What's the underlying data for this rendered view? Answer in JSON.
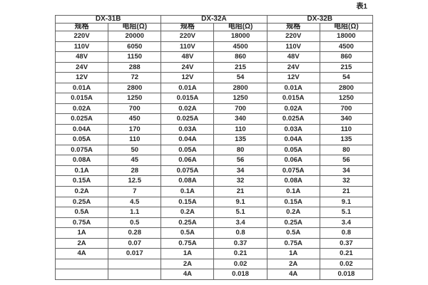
{
  "page": {
    "table_label": "表1"
  },
  "colors": {
    "background": "#ffffff",
    "border": "#636363",
    "text": "#262626"
  },
  "table": {
    "groups": [
      {
        "name": "DX-31B",
        "spec_header": "规格",
        "res_header": "电阻(Ω)"
      },
      {
        "name": "DX-32A",
        "spec_header": "规格",
        "res_header": "电阻(Ω)"
      },
      {
        "name": "DX-32B",
        "spec_header": "规格",
        "res_header": "电阻(Ω)"
      }
    ],
    "rows": [
      [
        "220V",
        "20000",
        "220V",
        "18000",
        "220V",
        "18000"
      ],
      [
        "110V",
        "6050",
        "110V",
        "4500",
        "110V",
        "4500"
      ],
      [
        "48V",
        "1150",
        "48V",
        "860",
        "48V",
        "860"
      ],
      [
        "24V",
        "288",
        "24V",
        "215",
        "24V",
        "215"
      ],
      [
        "12V",
        "72",
        "12V",
        "54",
        "12V",
        "54"
      ],
      [
        "0.01A",
        "2800",
        "0.01A",
        "2800",
        "0.01A",
        "2800"
      ],
      [
        "0.015A",
        "1250",
        "0.015A",
        "1250",
        "0.015A",
        "1250"
      ],
      [
        "0.02A",
        "700",
        "0.02A",
        "700",
        "0.02A",
        "700"
      ],
      [
        "0.025A",
        "450",
        "0.025A",
        "340",
        "0.025A",
        "340"
      ],
      [
        "0.04A",
        "170",
        "0.03A",
        "110",
        "0.03A",
        "110"
      ],
      [
        "0.05A",
        "110",
        "0.04A",
        "135",
        "0.04A",
        "135"
      ],
      [
        "0.075A",
        "50",
        "0.05A",
        "80",
        "0.05A",
        "80"
      ],
      [
        "0.08A",
        "45",
        "0.06A",
        "56",
        "0.06A",
        "56"
      ],
      [
        "0.1A",
        "28",
        "0.075A",
        "34",
        "0.075A",
        "34"
      ],
      [
        "0.15A",
        "12.5",
        "0.08A",
        "32",
        "0.08A",
        "32"
      ],
      [
        "0.2A",
        "7",
        "0.1A",
        "21",
        "0.1A",
        "21"
      ],
      [
        "0.25A",
        "4.5",
        "0.15A",
        "9.1",
        "0.15A",
        "9.1"
      ],
      [
        "0.5A",
        "1.1",
        "0.2A",
        "5.1",
        "0.2A",
        "5.1"
      ],
      [
        "0.75A",
        "0.5",
        "0.25A",
        "3.4",
        "0.25A",
        "3.4"
      ],
      [
        "1A",
        "0.28",
        "0.5A",
        "0.8",
        "0.5A",
        "0.8"
      ],
      [
        "2A",
        "0.07",
        "0.75A",
        "0.37",
        "0.75A",
        "0.37"
      ],
      [
        "4A",
        "0.017",
        "1A",
        "0.21",
        "1A",
        "0.21"
      ],
      [
        "",
        "",
        "2A",
        "0.02",
        "2A",
        "0.02"
      ],
      [
        "",
        "",
        "4A",
        "0.018",
        "4A",
        "0.018"
      ]
    ]
  }
}
